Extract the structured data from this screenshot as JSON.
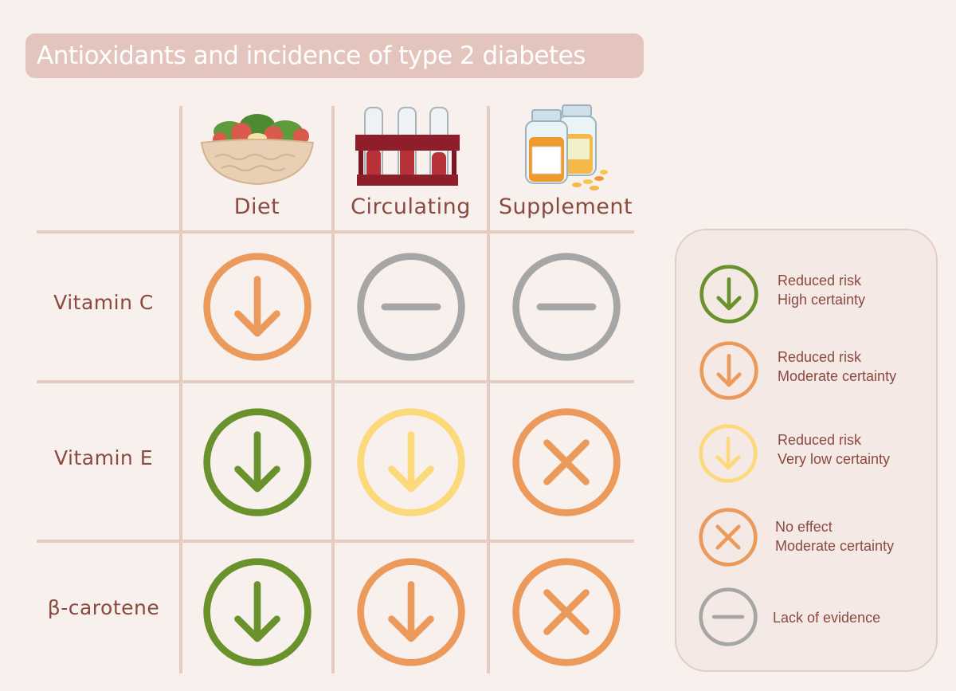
{
  "title": "Antioxidants and incidence of type 2 diabetes",
  "columns": [
    "Diet",
    "Circulating",
    "Supplement"
  ],
  "rows": [
    "Vitamin C",
    "Vitamin E",
    "β-carotene"
  ],
  "colors": {
    "green": "#6a922c",
    "orange": "#ec9a5c",
    "yellow": "#fcd97a",
    "gray": "#a6a6a6",
    "text": "#8b4a40"
  },
  "matrix": [
    [
      "orange-down",
      "gray-dash",
      "gray-dash"
    ],
    [
      "green-down",
      "yellow-down",
      "orange-x"
    ],
    [
      "green-down",
      "orange-down",
      "orange-x"
    ]
  ],
  "legend": [
    {
      "icon": "green-down",
      "line1": "Reduced risk",
      "line2": "High certainty"
    },
    {
      "icon": "orange-down",
      "line1": "Reduced risk",
      "line2": "Moderate certainty"
    },
    {
      "icon": "yellow-down",
      "line1": "Reduced risk",
      "line2": "Very low certainty"
    },
    {
      "icon": "orange-x",
      "line1": "No effect",
      "line2": "Moderate certainty"
    },
    {
      "icon": "gray-dash",
      "line1": "Lack of evidence",
      "line2": ""
    }
  ]
}
